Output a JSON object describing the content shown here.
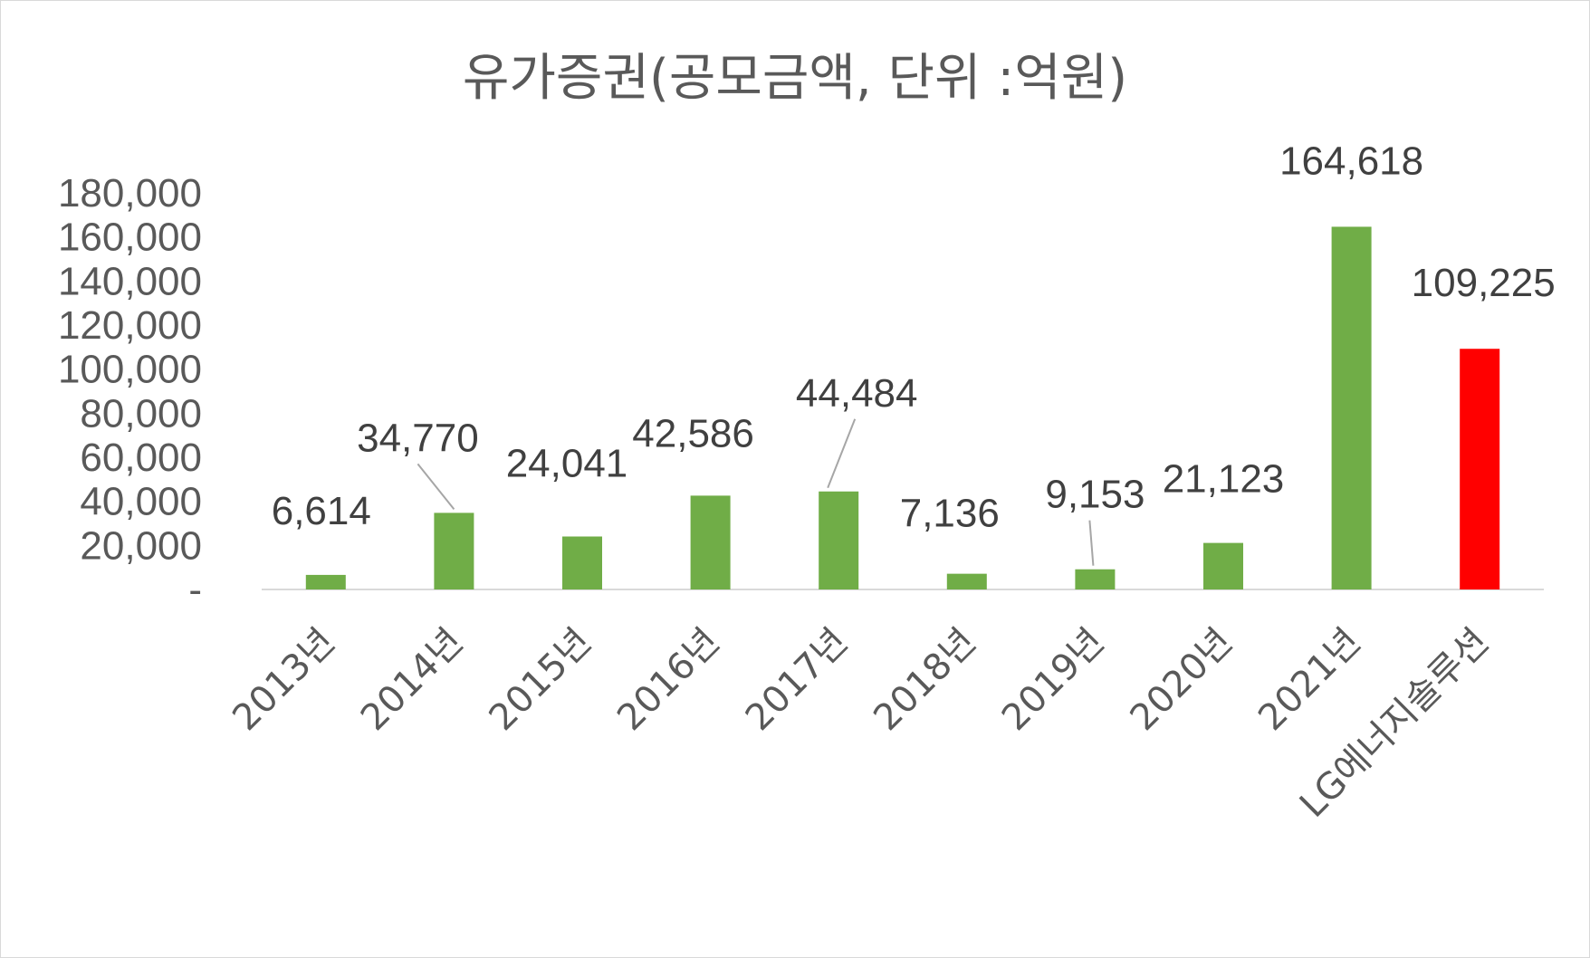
{
  "chart_data": {
    "type": "bar",
    "title": "유가증권(공모금액, 단위 :억원)",
    "categories": [
      "2013년",
      "2014년",
      "2015년",
      "2016년",
      "2017년",
      "2018년",
      "2019년",
      "2020년",
      "2021년",
      "LG에너지솔루션"
    ],
    "values": [
      6614,
      34770,
      24041,
      42586,
      44484,
      7136,
      9153,
      21123,
      164618,
      109225
    ],
    "data_labels": [
      "6,614",
      "34,770",
      "24,041",
      "42,586",
      "44,484",
      "7,136",
      "9,153",
      "21,123",
      "164,618",
      "109,225"
    ],
    "bar_colors": [
      "#70ad47",
      "#70ad47",
      "#70ad47",
      "#70ad47",
      "#70ad47",
      "#70ad47",
      "#70ad47",
      "#70ad47",
      "#70ad47",
      "#ff0000"
    ],
    "ylim": [
      0,
      180000
    ],
    "y_ticks": [
      0,
      20000,
      40000,
      60000,
      80000,
      100000,
      120000,
      140000,
      160000,
      180000
    ],
    "y_tick_labels": [
      "-",
      "20,000",
      "40,000",
      "60,000",
      "80,000",
      "100,000",
      "120,000",
      "140,000",
      "160,000",
      "180,000"
    ],
    "xlabel": "",
    "ylabel": "",
    "grid": false,
    "legend": "none",
    "axis_color": "#d9d9d9",
    "text_color": "#595959"
  }
}
